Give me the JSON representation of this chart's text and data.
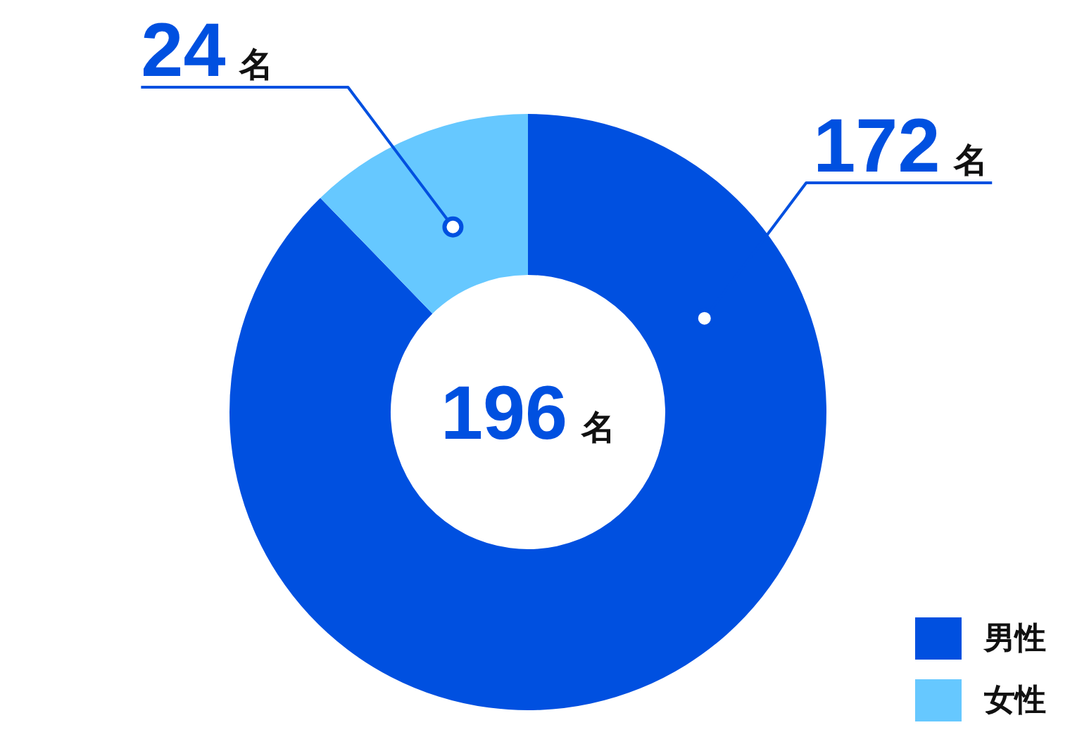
{
  "chart_data": {
    "type": "donut",
    "categories": [
      "男性",
      "女性"
    ],
    "values": [
      172,
      24
    ],
    "colors": [
      "#0050e0",
      "#66c8ff"
    ],
    "value_labels": [
      "172 名",
      "24 名"
    ],
    "annotations": [
      "196 名"
    ],
    "legend": "bottom right"
  }
}
